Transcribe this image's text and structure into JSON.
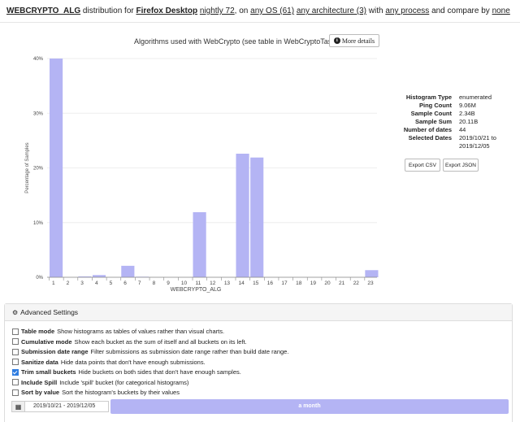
{
  "header": {
    "histogram": "WEBCRYPTO_ALG",
    "w1": "distribution for",
    "product": "Firefox Desktop",
    "channel": "nightly 72",
    "w2": ", on",
    "os": "any OS (61)",
    "architecture": "any architecture (3)",
    "w3": "with",
    "process": "any process",
    "w4": "and compare by",
    "compare": "none"
  },
  "chart_title": "Algorithms used with WebCrypto (see table in WebCryptoTask.cpp)",
  "more_details_label": "More details",
  "chart_data": {
    "type": "bar",
    "categories": [
      "1",
      "2",
      "3",
      "4",
      "5",
      "6",
      "7",
      "8",
      "9",
      "10",
      "11",
      "12",
      "13",
      "14",
      "15",
      "16",
      "17",
      "18",
      "19",
      "20",
      "21",
      "22",
      "23"
    ],
    "tick_labels": [
      "1",
      "2",
      "3",
      "4",
      "5",
      "6",
      "7",
      "8",
      "9",
      "10",
      "11",
      "12",
      "13",
      "14",
      "15",
      "16",
      "17",
      "18",
      "19",
      "20",
      "21",
      "22",
      "23"
    ],
    "values": [
      40.0,
      0,
      0.15,
      0.4,
      0,
      2.1,
      0.1,
      0,
      0,
      0,
      11.9,
      0,
      0,
      22.6,
      21.9,
      0,
      0,
      0,
      0,
      0,
      0,
      0,
      1.3
    ],
    "ylabel": "Percentage of Samples",
    "xlabel": "WEBCRYPTO_ALG",
    "ylim": [
      0,
      40
    ],
    "yticks": [
      "0%",
      "10%",
      "20%",
      "30%",
      "40%"
    ],
    "bar_color": "#b4b4f4"
  },
  "stats": [
    {
      "k": "Histogram Type",
      "v": "enumerated"
    },
    {
      "k": "Ping Count",
      "v": "9.06M"
    },
    {
      "k": "Sample Count",
      "v": "2.34B"
    },
    {
      "k": "Sample Sum",
      "v": "20.11B"
    },
    {
      "k": "Number of dates",
      "v": "44"
    },
    {
      "k": "Selected Dates",
      "v": "2019/10/21 to 2019/12/05"
    }
  ],
  "export_csv_label": "Export CSV",
  "export_json_label": "Export JSON",
  "advanced": {
    "title": "Advanced Settings",
    "options": [
      {
        "t": "Table mode",
        "d": "Show histograms as tables of values rather than visual charts.",
        "checked": false
      },
      {
        "t": "Cumulative mode",
        "d": "Show each bucket as the sum of itself and all buckets on its left.",
        "checked": false
      },
      {
        "t": "Submission date range",
        "d": "Filter submissions as submission date range rather than build date range.",
        "checked": false
      },
      {
        "t": "Sanitize data",
        "d": "Hide data points that don't have enough submissions.",
        "checked": false
      },
      {
        "t": "Trim small buckets",
        "d": "Hide buckets on both sides that don't have enough samples.",
        "checked": true
      },
      {
        "t": "Include Spill",
        "d": "Include 'spill' bucket (for categorical histograms)",
        "checked": false
      },
      {
        "t": "Sort by value",
        "d": "Sort the histogram's buckets by their values",
        "checked": false
      }
    ],
    "date_range": "2019/10/21 - 2019/12/05",
    "slider_label": "a month"
  }
}
